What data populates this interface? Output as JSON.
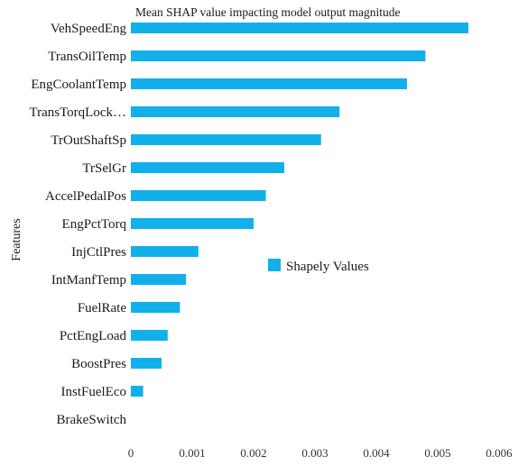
{
  "chart_data": {
    "type": "bar",
    "orientation": "horizontal",
    "title": "Mean SHAP value impacting model output magnitude",
    "ylabel": "Features",
    "xlabel": "",
    "xlim": [
      0,
      0.006
    ],
    "x_ticks": [
      "0",
      "0.001",
      "0.002",
      "0.003",
      "0.004",
      "0.005",
      "0.006"
    ],
    "grid": false,
    "legend_position": "center-right",
    "categories": [
      "VehSpeedEng",
      "TransOilTemp",
      "EngCoolantTemp",
      "TransTorqLock…",
      "TrOutShaftSp",
      "TrSelGr",
      "AccelPedalPos",
      "EngPctTorq",
      "InjCtlPres",
      "IntManfTemp",
      "FuelRate",
      "PctEngLoad",
      "BoostPres",
      "InstFuelEco",
      "BrakeSwitch"
    ],
    "series": [
      {
        "name": "Shapely Values",
        "color": "#12b0ea",
        "values": [
          0.0055,
          0.0048,
          0.0045,
          0.0034,
          0.0031,
          0.0025,
          0.0022,
          0.002,
          0.0011,
          0.0009,
          0.0008,
          0.0006,
          0.0005,
          0.0002,
          0.0
        ]
      }
    ]
  }
}
